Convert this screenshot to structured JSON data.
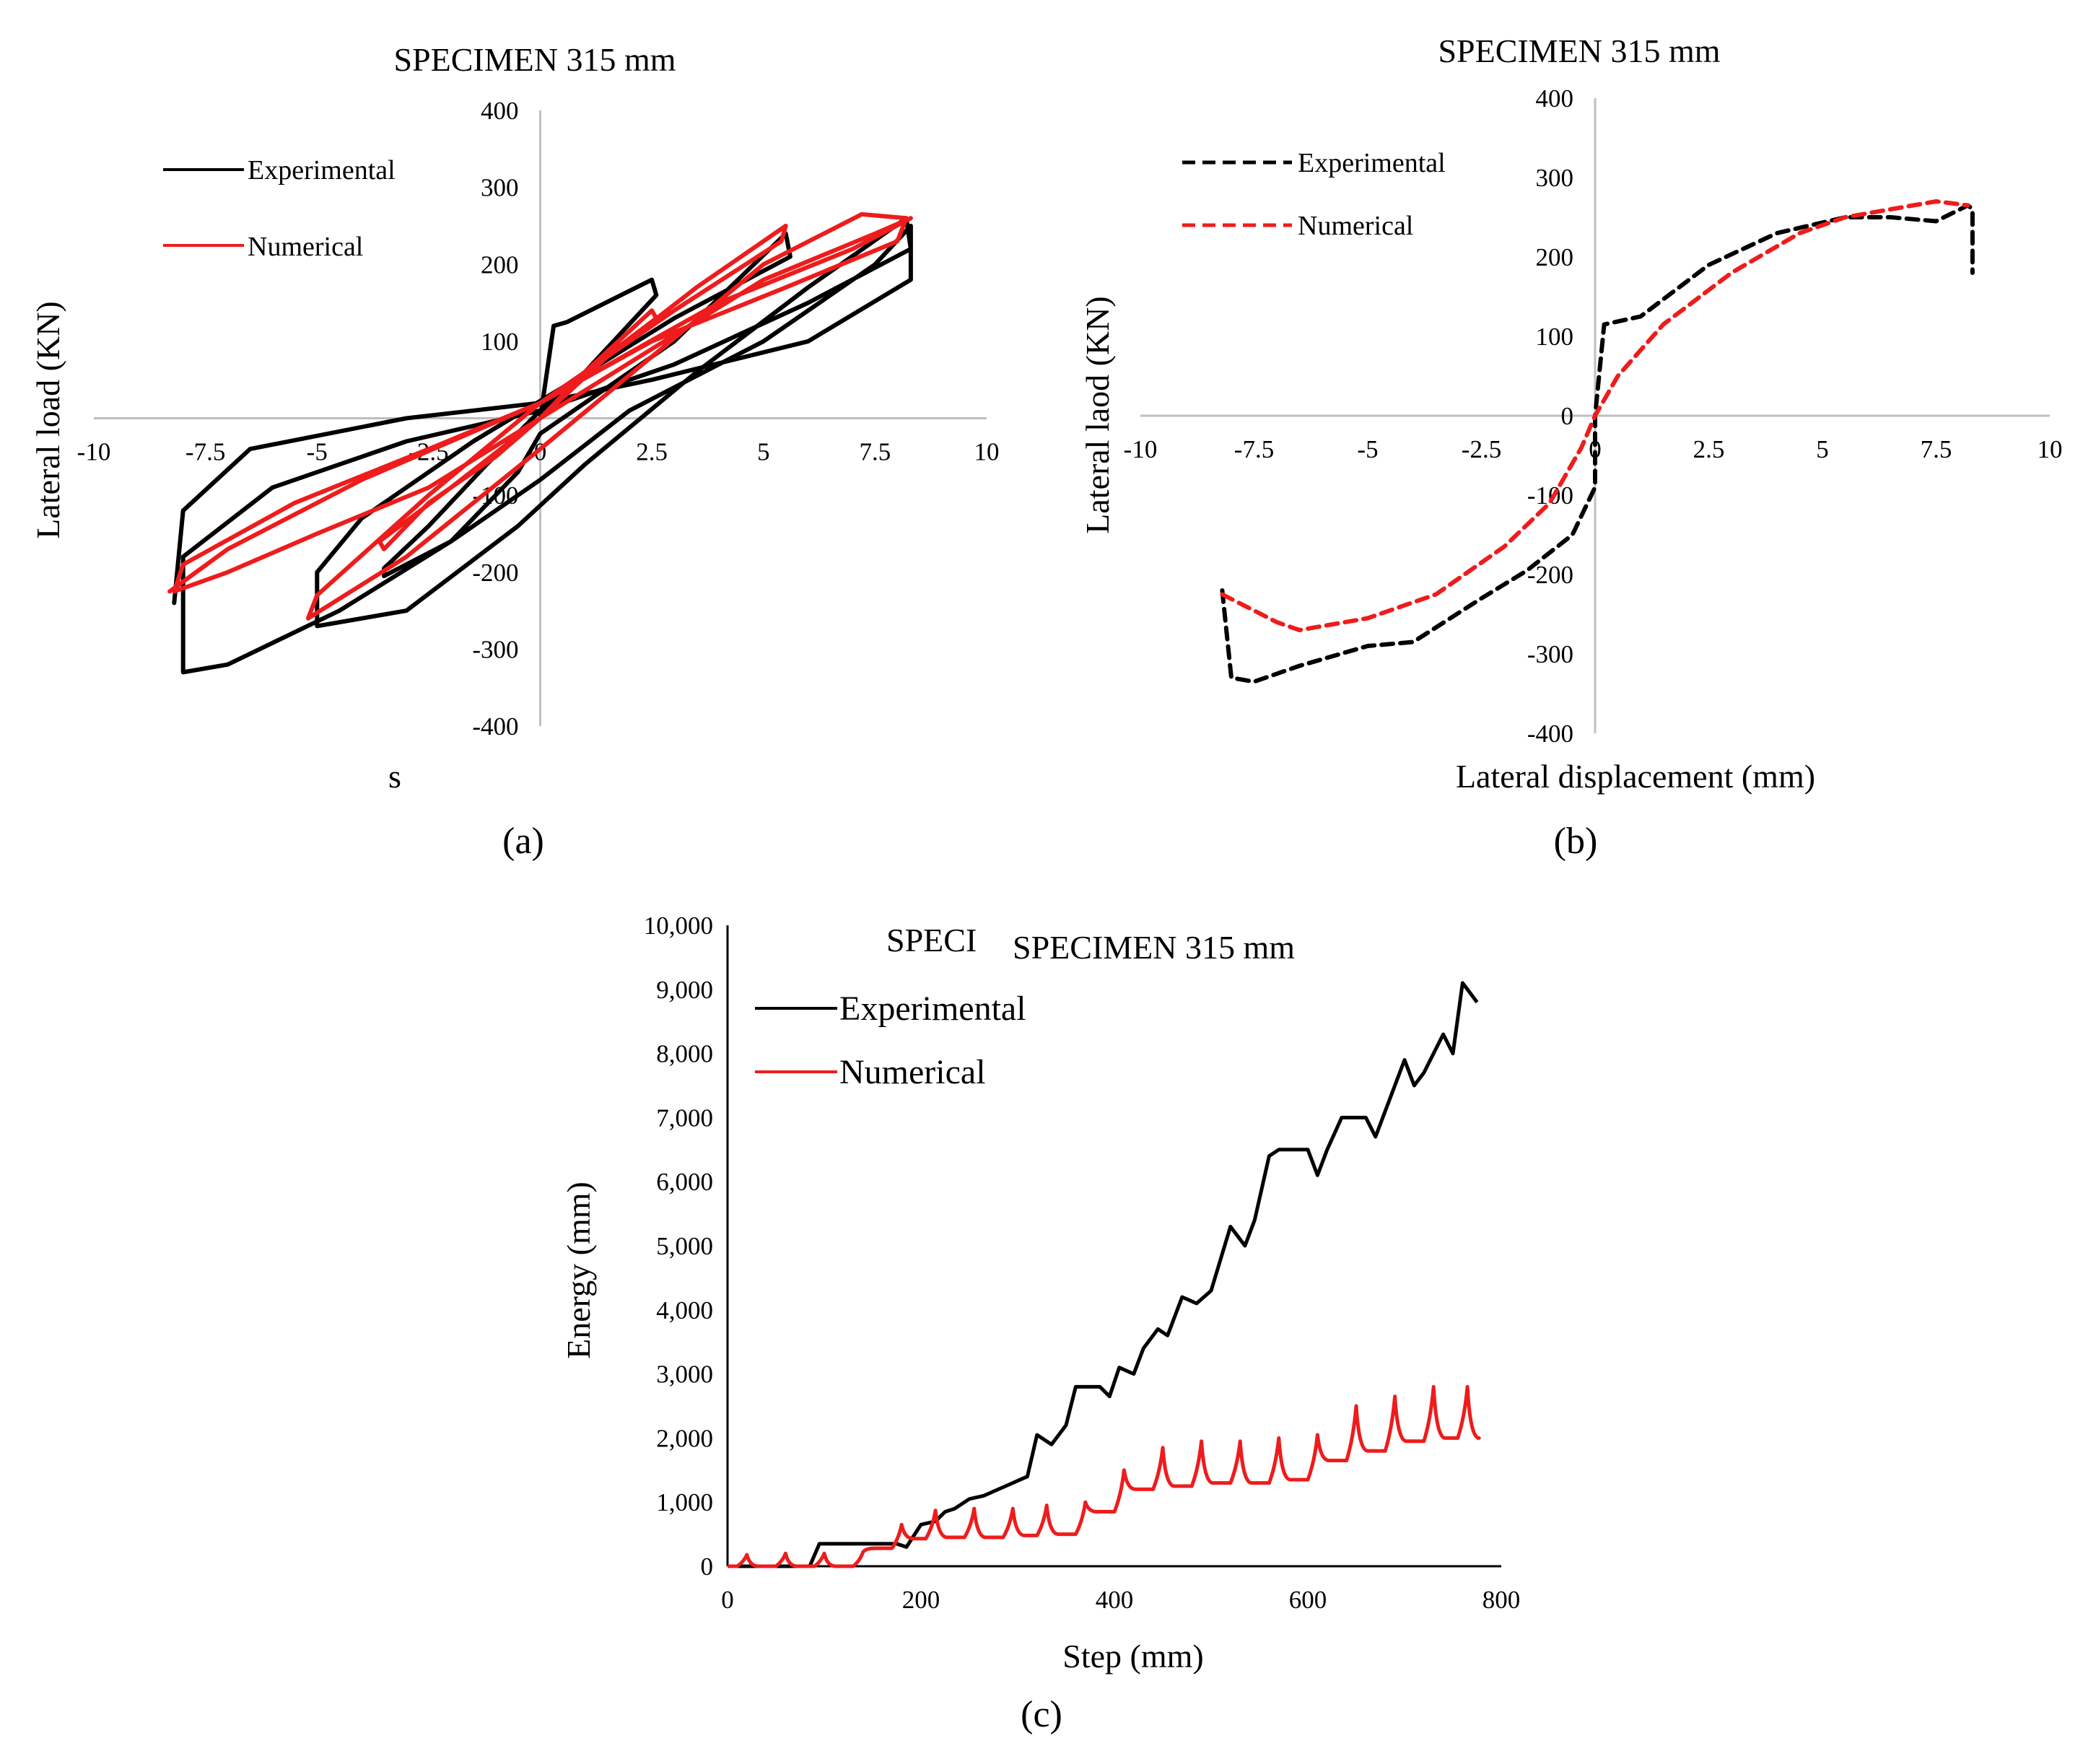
{
  "chart_data": [
    {
      "id": "a",
      "type": "line",
      "title": "SPECIMEN 315 mm",
      "xlabel": "s",
      "ylabel": "Lateral load (KN)",
      "caption": "(a)",
      "xlim": [
        -10,
        10
      ],
      "ylim": [
        -400,
        400
      ],
      "xticks": [
        "-10",
        "-7.5",
        "-5",
        "-2.5",
        "0",
        "2.5",
        "5",
        "7.5",
        "10"
      ],
      "yticks": [
        "400",
        "300",
        "200",
        "100",
        "-100",
        "-200",
        "-300",
        "-400"
      ],
      "legend_position": "top-left",
      "series": [
        {
          "name": "Experimental",
          "color": "#000000",
          "style": "solid",
          "x": [
            0,
            0.3,
            0.6,
            2.5,
            2.6,
            1.0,
            0,
            -1.2,
            -2.5,
            -3.5,
            -3.5,
            -2.0,
            -0.5,
            0,
            1.0,
            3.0,
            5.5,
            5.6,
            3.0,
            0.5,
            -1.5,
            -4.0,
            -5.0,
            -5.0,
            -3.0,
            -0.5,
            1.0,
            3.5,
            6.0,
            8.2,
            8.3,
            6.0,
            3.0,
            0,
            -3.0,
            -6.0,
            -8.0,
            -8.0,
            -7.0,
            -4.5,
            -2.0,
            0,
            2.0,
            5.0,
            7.5,
            8.3,
            8.3,
            6.0,
            2.5,
            0,
            -3.0,
            -6.5,
            -8.0,
            -8.2
          ],
          "y": [
            0,
            120,
            125,
            180,
            160,
            60,
            10,
            -60,
            -140,
            -195,
            -205,
            -160,
            -70,
            -20,
            20,
            100,
            240,
            210,
            130,
            40,
            -30,
            -130,
            -200,
            -270,
            -250,
            -140,
            -60,
            60,
            170,
            260,
            220,
            150,
            70,
            10,
            -30,
            -90,
            -180,
            -330,
            -320,
            -250,
            -160,
            -80,
            10,
            100,
            200,
            250,
            180,
            100,
            50,
            20,
            0,
            -40,
            -120,
            -240
          ]
        },
        {
          "name": "Numerical",
          "color": "#ee1c1c",
          "style": "solid",
          "x": [
            0,
            1.0,
            2.5,
            2.6,
            1.0,
            0,
            -1.0,
            -2.5,
            -3.5,
            -3.6,
            -2.0,
            0,
            1.5,
            3.5,
            5.5,
            5.4,
            3.0,
            0,
            -2.5,
            -5.0,
            -5.2,
            -3.0,
            0,
            2.5,
            5.0,
            7.2,
            8.2,
            8.0,
            5.5,
            2.5,
            0,
            -2.5,
            -5.5,
            -8.0,
            -8.2,
            -7.0,
            -5.0,
            -2.5,
            0,
            2.5,
            5.0,
            7.5,
            8.3,
            7.0,
            4.0,
            0,
            -4.0,
            -7.0,
            -8.3
          ],
          "y": [
            0,
            60,
            140,
            130,
            60,
            0,
            -50,
            -110,
            -170,
            -160,
            -90,
            0,
            80,
            170,
            250,
            230,
            140,
            20,
            -100,
            -230,
            -260,
            -180,
            -40,
            80,
            200,
            265,
            260,
            230,
            170,
            100,
            20,
            -40,
            -110,
            -190,
            -225,
            -200,
            -150,
            -90,
            0,
            90,
            180,
            240,
            260,
            220,
            150,
            20,
            -80,
            -170,
            -225
          ]
        }
      ]
    },
    {
      "id": "b",
      "type": "line",
      "title": "SPECIMEN 315 mm",
      "xlabel": "Lateral displacement (mm)",
      "ylabel": "Lateral laod (KN)",
      "caption": "(b)",
      "xlim": [
        -10,
        10
      ],
      "ylim": [
        -400,
        400
      ],
      "xticks": [
        "-10",
        "-7.5",
        "-5",
        "-2.5",
        "0",
        "2.5",
        "5",
        "7.5",
        "10"
      ],
      "yticks": [
        "400",
        "300",
        "200",
        "100",
        "0",
        "-100",
        "-200",
        "-300",
        "-400"
      ],
      "legend_position": "top-left",
      "series": [
        {
          "name": "Experimental",
          "color": "#000000",
          "style": "dashed",
          "x": [
            -8.2,
            -8.0,
            -7.5,
            -6.5,
            -5.0,
            -4.0,
            -2.5,
            -1.5,
            -0.5,
            0,
            0,
            0.2,
            1.0,
            2.5,
            4.0,
            5.5,
            6.5,
            7.5,
            8.2,
            8.3,
            8.3
          ],
          "y": [
            -220,
            -330,
            -335,
            -315,
            -290,
            -285,
            -230,
            -195,
            -150,
            -90,
            0,
            115,
            125,
            190,
            230,
            250,
            250,
            245,
            265,
            260,
            180
          ]
        },
        {
          "name": "Numerical",
          "color": "#ee1c1c",
          "style": "dashed",
          "x": [
            -8.2,
            -7.0,
            -6.5,
            -5.0,
            -3.5,
            -2.0,
            -1.0,
            -0.3,
            0,
            0.5,
            1.5,
            3.0,
            4.5,
            5.5,
            6.5,
            7.5,
            8.2
          ],
          "y": [
            -225,
            -260,
            -270,
            -255,
            -225,
            -165,
            -110,
            -40,
            0,
            50,
            115,
            180,
            230,
            250,
            260,
            270,
            265
          ]
        }
      ]
    },
    {
      "id": "c",
      "type": "line",
      "title": "SPECIMEN 315 mm",
      "overlapped_title_fragment": "SPECI",
      "xlabel": "Step (mm)",
      "ylabel": "Energy (mm)",
      "caption": "(c)",
      "xlim": [
        0,
        800
      ],
      "ylim": [
        0,
        10000
      ],
      "xticks": [
        "0",
        "200",
        "400",
        "600",
        "800"
      ],
      "yticks": [
        "10,000",
        "9,000",
        "8,000",
        "7,000",
        "6,000",
        "5,000",
        "4,000",
        "3,000",
        "2,000",
        "1,000",
        "0"
      ],
      "legend_position": "top-left",
      "series": [
        {
          "name": "Experimental",
          "color": "#000000",
          "style": "solid",
          "x": [
            0,
            85,
            95,
            175,
            185,
            200,
            215,
            225,
            235,
            250,
            265,
            280,
            295,
            310,
            320,
            335,
            350,
            360,
            385,
            395,
            405,
            420,
            430,
            445,
            455,
            470,
            485,
            500,
            520,
            535,
            545,
            560,
            570,
            600,
            610,
            620,
            635,
            660,
            670,
            680,
            700,
            710,
            720,
            740,
            750,
            760,
            775
          ],
          "y": [
            0,
            0,
            350,
            350,
            300,
            650,
            700,
            850,
            900,
            1050,
            1100,
            1200,
            1300,
            1400,
            2050,
            1900,
            2200,
            2800,
            2800,
            2650,
            3100,
            3000,
            3400,
            3700,
            3600,
            4200,
            4100,
            4300,
            5300,
            5000,
            5400,
            6400,
            6500,
            6500,
            6100,
            6500,
            7000,
            7000,
            6700,
            7100,
            7900,
            7500,
            7700,
            8300,
            8000,
            9100,
            8800
          ]
        },
        {
          "name": "Numerical",
          "color": "#ee1c1c",
          "style": "solid",
          "peaks_x": [
            20,
            60,
            100,
            140,
            180,
            215,
            255,
            295,
            330,
            370,
            410,
            450,
            490,
            530,
            570,
            610,
            650,
            690,
            730,
            765
          ],
          "peaks_y": [
            180,
            200,
            200,
            220,
            650,
            870,
            900,
            900,
            950,
            1000,
            1500,
            1850,
            1950,
            1950,
            2000,
            2050,
            2500,
            2650,
            2800,
            2800
          ],
          "troughs_y": [
            0,
            0,
            0,
            0,
            280,
            430,
            450,
            450,
            480,
            500,
            850,
            1200,
            1250,
            1300,
            1300,
            1350,
            1650,
            1800,
            1950,
            2000
          ]
        }
      ]
    }
  ]
}
